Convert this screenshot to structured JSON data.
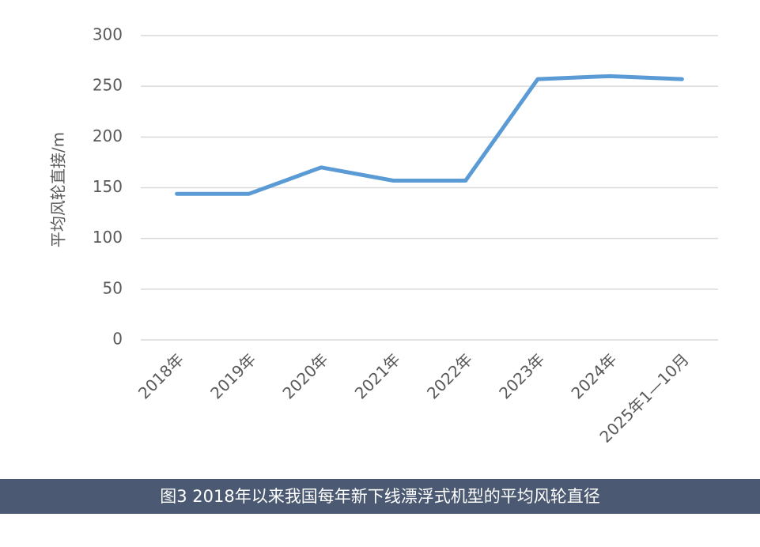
{
  "chart_data": {
    "type": "line",
    "y_label": "平均风轮直接/m",
    "categories": [
      "2018年",
      "2019年",
      "2020年",
      "2021年",
      "2022年",
      "2023年",
      "2024年",
      "2025年1—10月"
    ],
    "series": [
      {
        "name": "平均风轮直径",
        "color": "#5b9bd5",
        "values": [
          144,
          144,
          170,
          157,
          157,
          257,
          260,
          257
        ]
      }
    ],
    "ylim": [
      0,
      300
    ],
    "yticks": [
      0,
      50,
      100,
      150,
      200,
      250,
      300
    ],
    "grid": true
  },
  "caption": "图3 2018年以来我国每年新下线漂浮式机型的平均风轮直径"
}
